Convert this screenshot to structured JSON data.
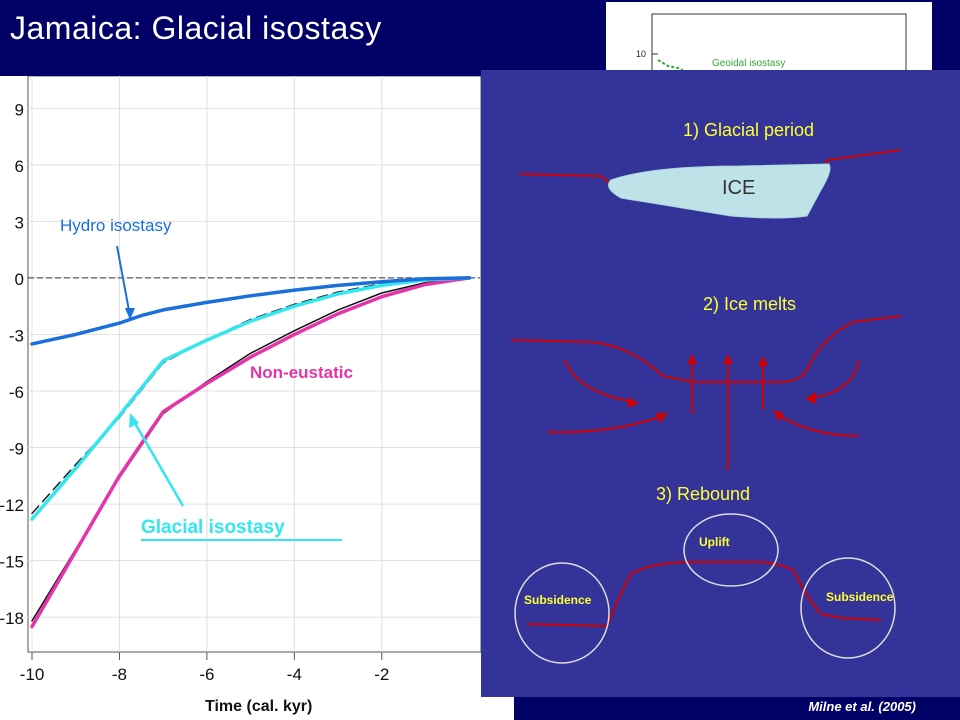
{
  "title": "Jamaica: Glacial isostasy",
  "citation": "Milne et al. (2005)",
  "inset": {
    "tick": "10",
    "label": "Geoidal isostasy"
  },
  "panel": {
    "step1": "1) Glacial period",
    "ice": "ICE",
    "step2": "2) Ice melts",
    "step3": "3) Rebound",
    "uplift": "Uplift",
    "subsidence_left": "Subsidence",
    "subsidence_right": "Subsidence"
  },
  "colors": {
    "title_bg": "#000066",
    "panel_bg": "#333399",
    "panel_text": "#ffff33",
    "curve_red": "#cc0000",
    "ice_fill": "#bde3e8",
    "hydro": "#1a6fdb",
    "glacial": "#33e6f0",
    "non_eustatic": "#e633aa"
  },
  "chart_data": {
    "type": "line",
    "xlabel": "Time (cal. kyr)",
    "ylabel": "",
    "xlim": [
      -10,
      0.2
    ],
    "ylim": [
      -19,
      10.5
    ],
    "x_ticks": [
      "-10",
      "-8",
      "-6",
      "-4",
      "-2"
    ],
    "y_ticks": [
      "9",
      "6",
      "3",
      "0",
      "-3",
      "-6",
      "-9",
      "-12",
      "-15",
      "-18"
    ],
    "annotations": {
      "hydro": "Hydro isostasy",
      "non_eustatic": "Non-eustatic",
      "glacial": "Glacial isostasy"
    },
    "series": [
      {
        "key": "hydro",
        "x": [
          -10,
          -9,
          -8,
          -7.5,
          -7,
          -6,
          -5,
          -4,
          -3,
          -2,
          -1,
          0
        ],
        "values": [
          -3.5,
          -3.0,
          -2.4,
          -2.0,
          -1.7,
          -1.3,
          -0.95,
          -0.65,
          -0.4,
          -0.2,
          -0.05,
          0
        ]
      },
      {
        "key": "glacial",
        "x": [
          -10,
          -9,
          -8,
          -7,
          -6,
          -5,
          -4,
          -3,
          -2,
          -1,
          0
        ],
        "values": [
          -12.8,
          -10.1,
          -7.3,
          -4.4,
          -3.3,
          -2.3,
          -1.5,
          -0.85,
          -0.4,
          -0.1,
          0
        ]
      },
      {
        "key": "non_eustatic",
        "x": [
          -10,
          -9,
          -8,
          -7,
          -6,
          -5,
          -4,
          -3,
          -2,
          -1,
          0
        ],
        "values": [
          -18.5,
          -14.5,
          -10.5,
          -7.1,
          -5.6,
          -4.2,
          -3.0,
          -1.9,
          -1.0,
          -0.35,
          0
        ]
      },
      {
        "key": "black",
        "x": [
          -10,
          -9,
          -8,
          -7,
          -6,
          -5,
          -4,
          -3,
          -2,
          -1,
          0
        ],
        "values": [
          -18.2,
          -14.4,
          -10.6,
          -7.2,
          -5.5,
          -4.0,
          -2.8,
          -1.7,
          -0.8,
          -0.25,
          0
        ]
      },
      {
        "key": "dash",
        "x": [
          -10,
          -9,
          -8,
          -7,
          -6,
          -5,
          -4,
          -3,
          -2,
          -1,
          0
        ],
        "values": [
          -12.5,
          -9.9,
          -7.4,
          -4.5,
          -3.3,
          -2.2,
          -1.4,
          -0.75,
          -0.3,
          -0.05,
          0
        ]
      }
    ]
  }
}
